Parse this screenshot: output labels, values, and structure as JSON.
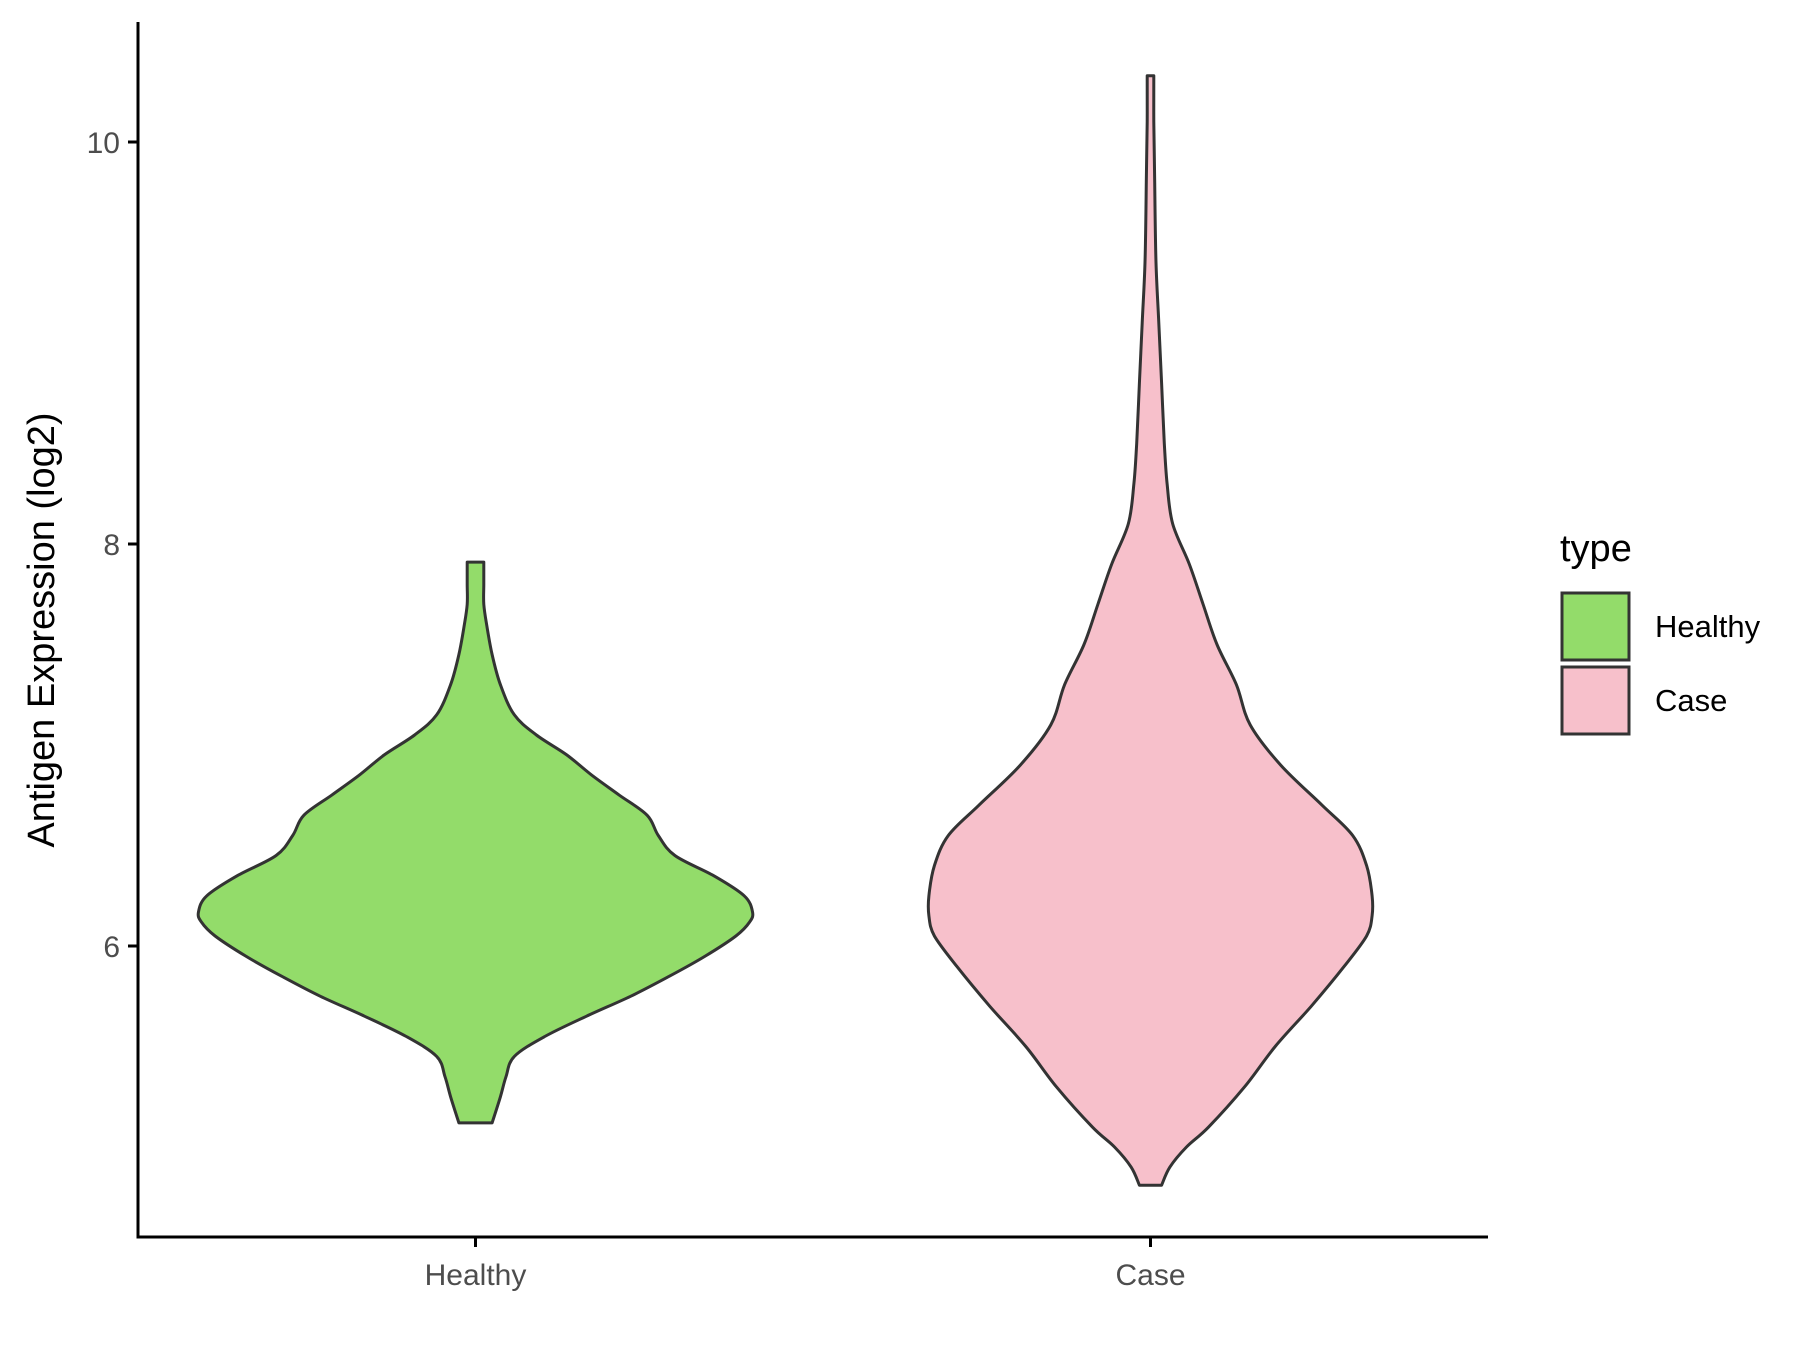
{
  "chart_data": {
    "type": "violin",
    "title": "",
    "xlabel": "",
    "ylabel": "Antigen Expression (log2)",
    "categories": [
      "Healthy",
      "Case"
    ],
    "y_ticks": [
      6,
      8,
      10
    ],
    "ylim": [
      4.5,
      10.6
    ],
    "grid": false,
    "legend": {
      "title": "type",
      "position": "right",
      "entries": [
        {
          "label": "Healthy",
          "color": "#93DC6A"
        },
        {
          "label": "Case",
          "color": "#F7C0CB"
        }
      ]
    },
    "series": [
      {
        "name": "Healthy",
        "color": "#93DC6A",
        "min": 5.12,
        "max": 7.91,
        "density": [
          [
            5.12,
            0.06
          ],
          [
            5.25,
            0.09
          ],
          [
            5.35,
            0.11
          ],
          [
            5.45,
            0.14
          ],
          [
            5.55,
            0.25
          ],
          [
            5.65,
            0.4
          ],
          [
            5.75,
            0.56
          ],
          [
            5.85,
            0.7
          ],
          [
            5.95,
            0.83
          ],
          [
            6.05,
            0.94
          ],
          [
            6.12,
            0.99
          ],
          [
            6.17,
            1.0
          ],
          [
            6.25,
            0.97
          ],
          [
            6.35,
            0.86
          ],
          [
            6.45,
            0.72
          ],
          [
            6.55,
            0.66
          ],
          [
            6.65,
            0.62
          ],
          [
            6.75,
            0.52
          ],
          [
            6.85,
            0.42
          ],
          [
            6.95,
            0.33
          ],
          [
            7.05,
            0.22
          ],
          [
            7.15,
            0.14
          ],
          [
            7.3,
            0.09
          ],
          [
            7.45,
            0.06
          ],
          [
            7.6,
            0.04
          ],
          [
            7.7,
            0.03
          ],
          [
            7.8,
            0.03
          ],
          [
            7.91,
            0.03
          ]
        ]
      },
      {
        "name": "Case",
        "color": "#F7C0CB",
        "min": 4.81,
        "max": 10.33,
        "density": [
          [
            4.81,
            0.04
          ],
          [
            4.9,
            0.07
          ],
          [
            5.0,
            0.13
          ],
          [
            5.1,
            0.21
          ],
          [
            5.3,
            0.34
          ],
          [
            5.5,
            0.45
          ],
          [
            5.7,
            0.58
          ],
          [
            5.9,
            0.7
          ],
          [
            6.05,
            0.78
          ],
          [
            6.15,
            0.8
          ],
          [
            6.25,
            0.8
          ],
          [
            6.4,
            0.78
          ],
          [
            6.55,
            0.73
          ],
          [
            6.7,
            0.62
          ],
          [
            6.9,
            0.47
          ],
          [
            7.1,
            0.36
          ],
          [
            7.3,
            0.31
          ],
          [
            7.5,
            0.24
          ],
          [
            7.7,
            0.19
          ],
          [
            7.9,
            0.14
          ],
          [
            8.1,
            0.08
          ],
          [
            8.3,
            0.06
          ],
          [
            8.5,
            0.05
          ],
          [
            8.8,
            0.04
          ],
          [
            9.1,
            0.03
          ],
          [
            9.4,
            0.02
          ],
          [
            9.8,
            0.015
          ],
          [
            10.1,
            0.012
          ],
          [
            10.33,
            0.012
          ]
        ]
      }
    ]
  }
}
